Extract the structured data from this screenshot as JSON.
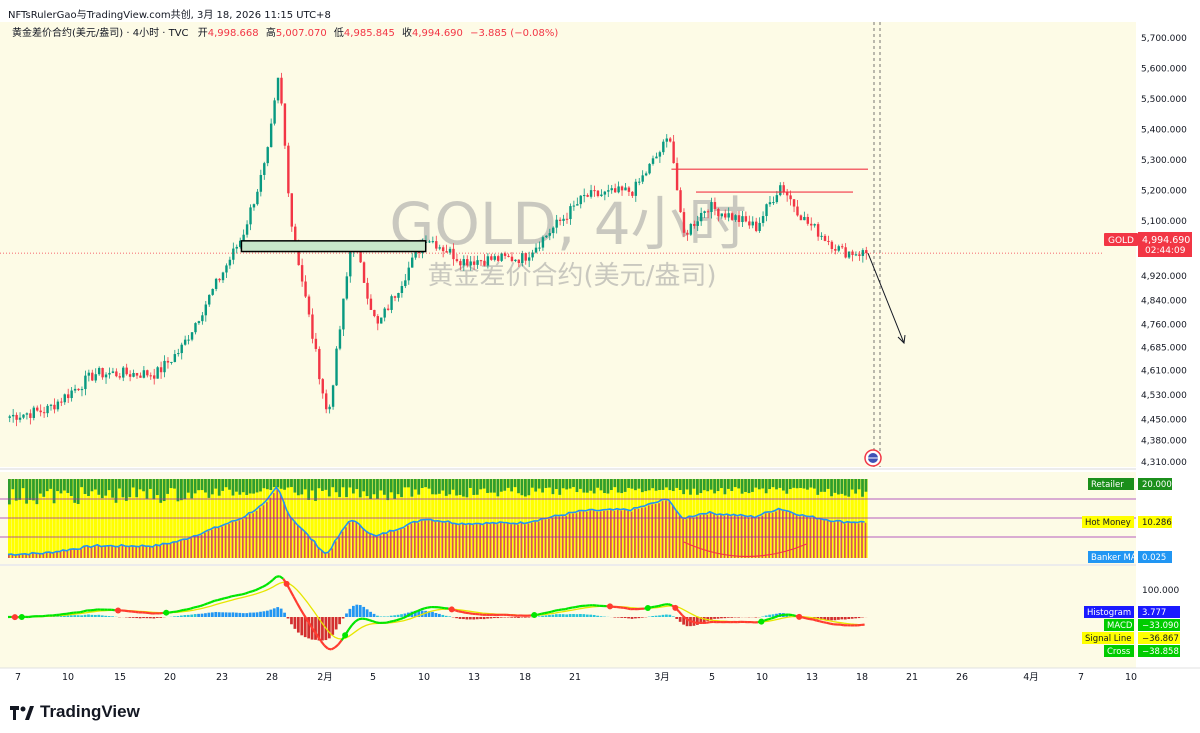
{
  "attribution": "NFTsRulerGao与TradingView.com共创, 3月 18, 2026 11:15 UTC+8",
  "legend": {
    "symbol": "黄金差价合约(美元/盎司) · 4小时 · TVC",
    "open_label": "开",
    "open": "4,998.668",
    "high_label": "高",
    "high": "5,007.070",
    "low_label": "低",
    "low": "4,985.845",
    "close_label": "收",
    "close": "4,994.690",
    "change": "−3.885 (−0.08%)"
  },
  "watermark": {
    "line1": "GOLD, 4小时",
    "line2": "黄金差价合约(美元/盎司)"
  },
  "price_tag": {
    "symbol": "GOLD",
    "price": "4,994.690",
    "countdown": "02:44:09"
  },
  "colors": {
    "up": "#089981",
    "down": "#f23645",
    "bg": "#fdfbe6",
    "yellow": "#ffff00",
    "hm_red": "#d9534f",
    "green_bar": "#2e9d2e",
    "blue_line": "#2196f3",
    "macd_red": "#ff3b30",
    "macd_green": "#00e600",
    "signal": "#ffff66"
  },
  "indicator1": {
    "labels": [
      {
        "name": "Retailer",
        "value": "20.000",
        "color": "#1b8f1b"
      },
      {
        "name": "Hot Money",
        "value": "10.286",
        "color": "#ffff00"
      },
      {
        "name": "Banker MA",
        "value": "0.025",
        "color": "#2196f3"
      }
    ]
  },
  "indicator2": {
    "scale_label": "100.000",
    "labels": [
      {
        "name": "Histogram",
        "value": "3.777",
        "color": "#1a1aff"
      },
      {
        "name": "MACD",
        "value": "−33.090",
        "color": "#00cc00"
      },
      {
        "name": "Signal Line",
        "value": "−36.867",
        "color": "#ffff00"
      },
      {
        "name": "Cross",
        "value": "−38.858",
        "color": "#00cc00"
      }
    ]
  },
  "footer": {
    "brand": "TradingView"
  },
  "chart_data": {
    "type": "candlestick",
    "symbol": "GOLD",
    "timeframe": "4小时",
    "y_axis_labels": [
      "5,700.000",
      "5,600.000",
      "5,500.000",
      "5,400.000",
      "5,300.000",
      "5,200.000",
      "5,100.000",
      "4,920.000",
      "4,840.000",
      "4,760.000",
      "4,685.000",
      "4,610.000",
      "4,530.000",
      "4,450.000",
      "4,380.000",
      "4,310.000"
    ],
    "x_axis_labels": [
      "7",
      "10",
      "15",
      "20",
      "23",
      "28",
      "2月",
      "5",
      "10",
      "13",
      "18",
      "21",
      "3月",
      "5",
      "10",
      "13",
      "18",
      "21",
      "26",
      "4月",
      "7",
      "10"
    ],
    "ylim": [
      4280,
      5760
    ],
    "key_points": [
      {
        "date": "2026-01-07",
        "close": 4460
      },
      {
        "date": "2026-01-10",
        "close": 4480
      },
      {
        "date": "2026-01-14",
        "close": 4600
      },
      {
        "date": "2026-01-19",
        "close": 4600
      },
      {
        "date": "2026-01-21",
        "close": 4680
      },
      {
        "date": "2026-01-26",
        "close": 5050
      },
      {
        "date": "2026-01-28",
        "close": 5300
      },
      {
        "date": "2026-01-29",
        "close": 5580
      },
      {
        "date": "2026-01-30",
        "close": 5100
      },
      {
        "date": "2026-02-02",
        "close": 4450
      },
      {
        "date": "2026-02-04",
        "close": 5050
      },
      {
        "date": "2026-02-06",
        "close": 4750
      },
      {
        "date": "2026-02-10",
        "close": 5050
      },
      {
        "date": "2026-02-13",
        "close": 4970
      },
      {
        "date": "2026-02-18",
        "close": 4980
      },
      {
        "date": "2026-02-23",
        "close": 5180
      },
      {
        "date": "2026-02-27",
        "close": 5200
      },
      {
        "date": "2026-03-02",
        "close": 5380
      },
      {
        "date": "2026-03-03",
        "close": 5050
      },
      {
        "date": "2026-03-05",
        "close": 5150
      },
      {
        "date": "2026-03-09",
        "close": 5080
      },
      {
        "date": "2026-03-11",
        "close": 5220
      },
      {
        "date": "2026-03-13",
        "close": 5100
      },
      {
        "date": "2026-03-16",
        "close": 5000
      },
      {
        "date": "2026-03-18",
        "close": 4994.69
      }
    ],
    "annotations": {
      "rectangle_zone": [
        5000,
        5035
      ],
      "resistance_lines": [
        5270,
        5195
      ],
      "current_price": 4994.69,
      "projection_arrow": {
        "from": 4994.69,
        "to": 4700
      }
    }
  }
}
